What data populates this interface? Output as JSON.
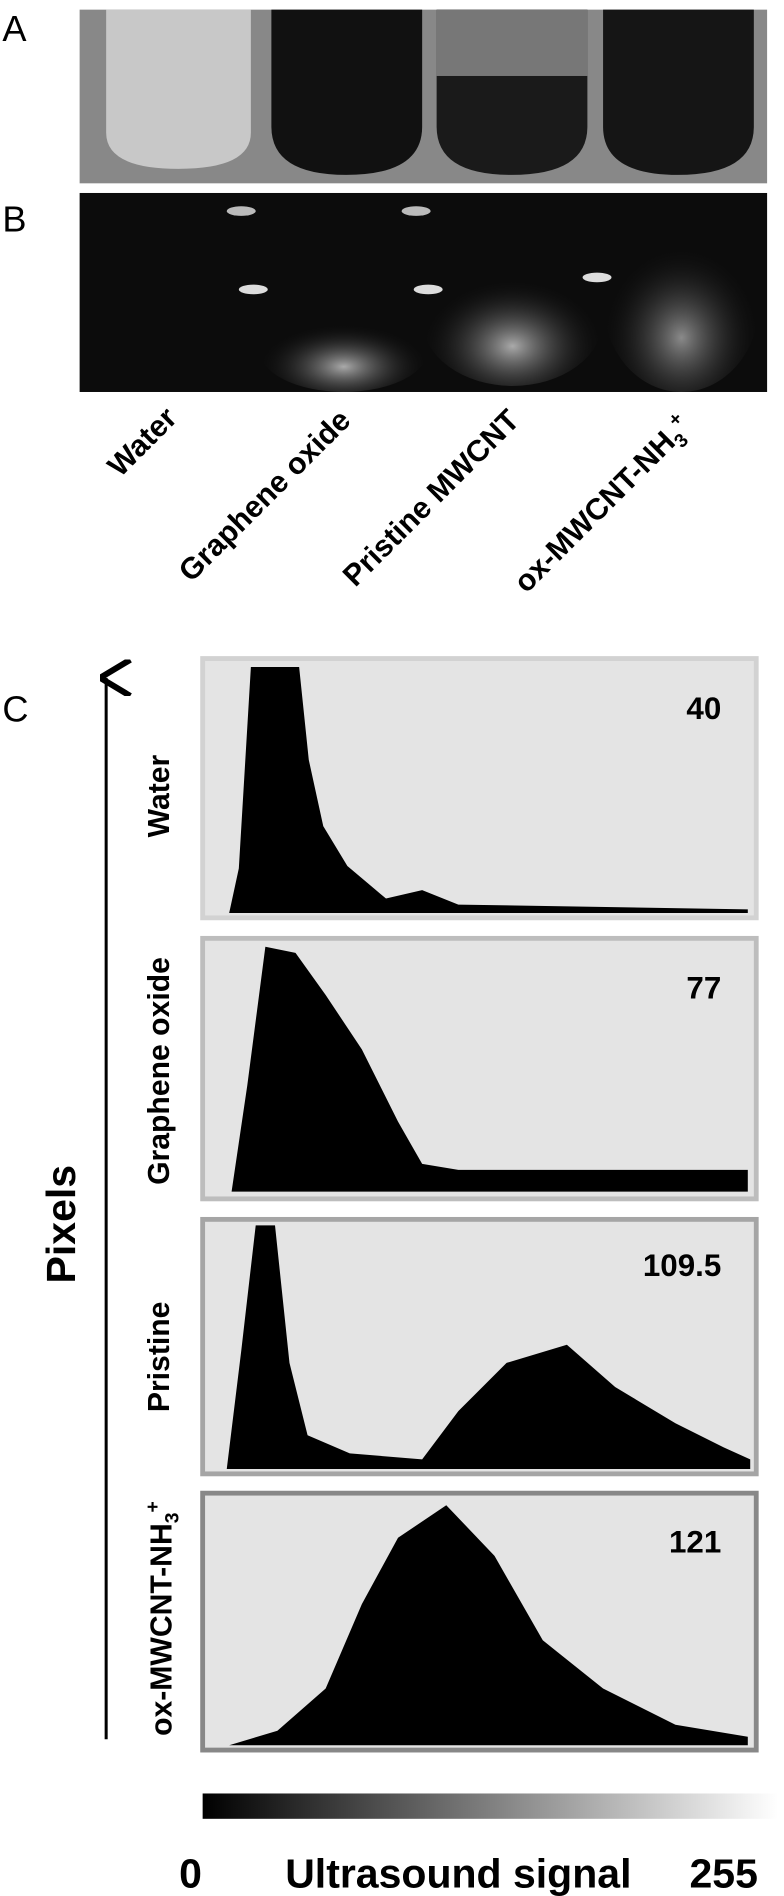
{
  "panels": {
    "a": "A",
    "b": "B",
    "c": "C"
  },
  "samples": [
    "Water",
    "Graphene oxide",
    "Pristine MWCNT",
    {
      "main": "ox-MWCNT-NH",
      "sub": "3",
      "sup": "+"
    }
  ],
  "histograms": [
    {
      "label": "Water",
      "mean": 40
    },
    {
      "label": "Graphene oxide",
      "mean": 77
    },
    {
      "label": "Pristine",
      "mean": 109.5
    },
    {
      "label": {
        "main": "ox-MWCNT-NH",
        "sub": "3",
        "sup": "+"
      },
      "mean": 121
    }
  ],
  "y_axis_label": "Pixels",
  "scale": {
    "min_label": "0",
    "title": "Ultrasound signal",
    "max_label": "255"
  }
}
